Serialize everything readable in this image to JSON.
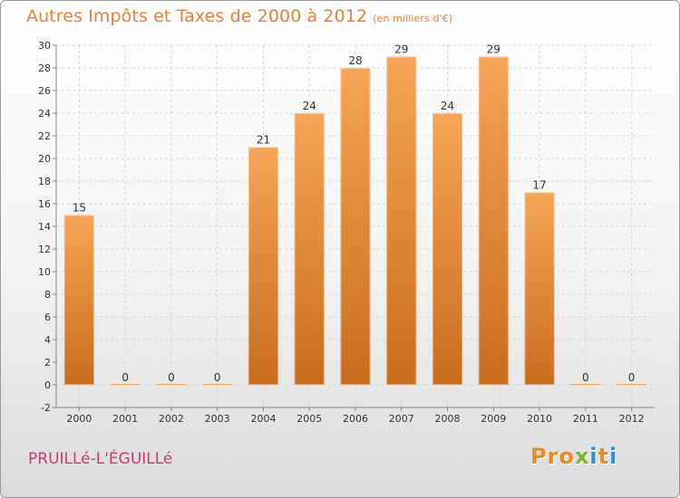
{
  "header": {
    "title": "Autres Impôts et Taxes de 2000 à 2012",
    "subtitle": "(en milliers d'€)"
  },
  "footer": {
    "commune": "PRUILLé-L'ÉGUILLé",
    "logo_letters": [
      "P",
      "r",
      "o",
      "x",
      "i",
      "t",
      "i"
    ]
  },
  "colors": {
    "bar_light": "#f7a556",
    "bar_dark": "#c96c1c",
    "title": "#ef7d34",
    "commune": "#cb3a74",
    "logo": [
      "#f08a1c",
      "#f08a1c",
      "#f08a1c",
      "#7ab829",
      "#2d8fd6",
      "#f08a1c",
      "#2d8fd6"
    ]
  },
  "chart_data": {
    "type": "bar",
    "title": "Autres Impôts et Taxes de 2000 à 2012",
    "categories": [
      "2000",
      "2001",
      "2002",
      "2003",
      "2004",
      "2005",
      "2006",
      "2007",
      "2008",
      "2009",
      "2010",
      "2011",
      "2012"
    ],
    "values": [
      15,
      0,
      0,
      0,
      21,
      24,
      28,
      29,
      24,
      29,
      17,
      0,
      0
    ],
    "ylim": [
      -2,
      30
    ],
    "yticks": [
      -2,
      0,
      2,
      4,
      6,
      8,
      10,
      12,
      14,
      16,
      18,
      20,
      22,
      24,
      26,
      28,
      30
    ],
    "grid": true,
    "xlabel": "",
    "ylabel": ""
  }
}
